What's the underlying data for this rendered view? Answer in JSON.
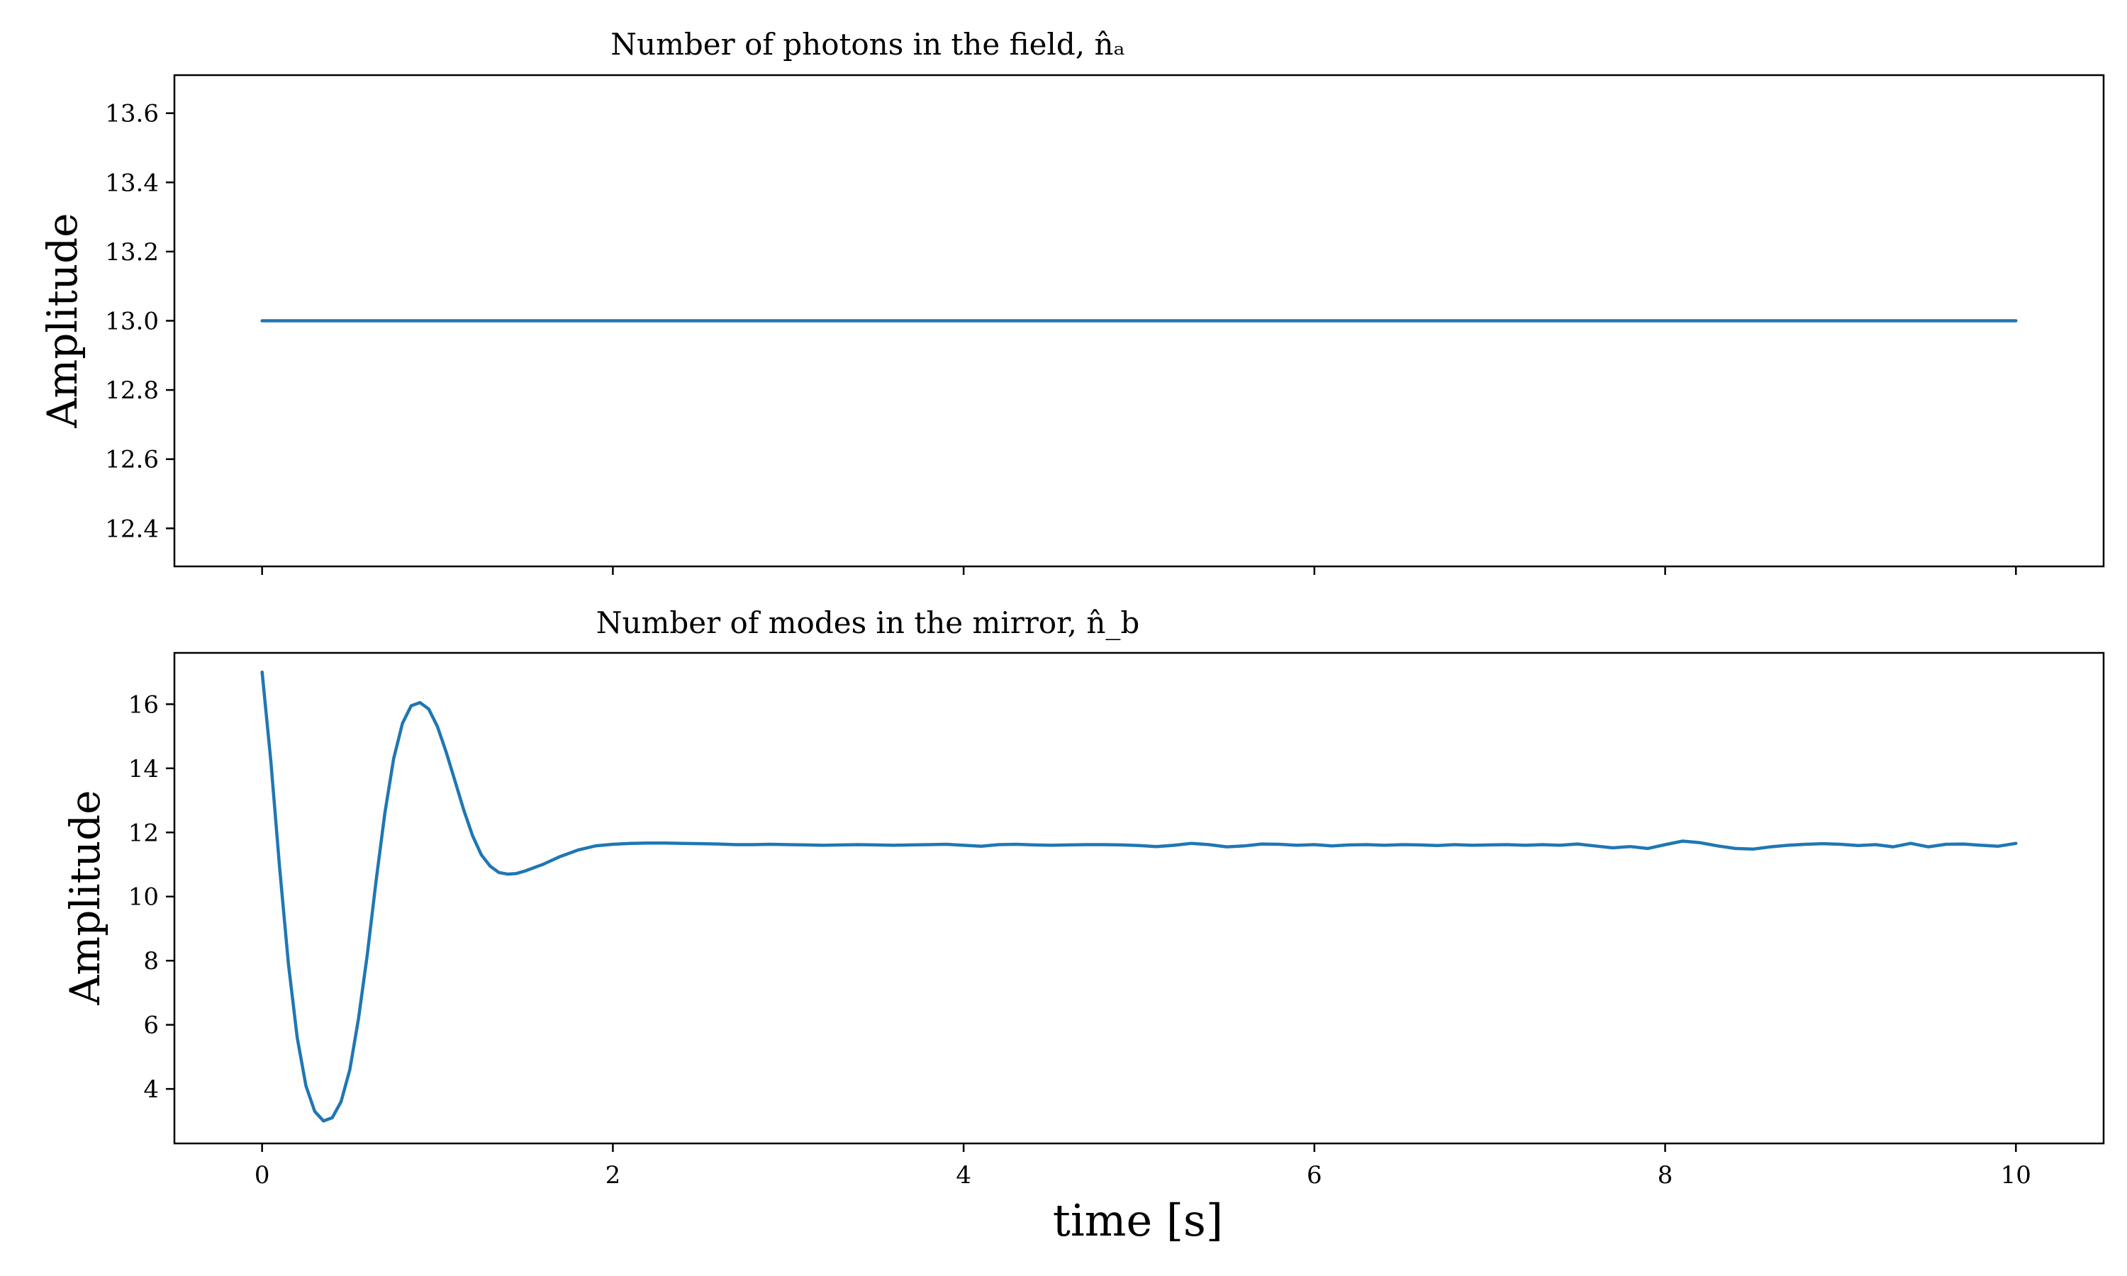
{
  "chart_data": [
    {
      "type": "line",
      "title": "Number of photons in the field, n̂ₐ",
      "xlabel": "",
      "ylabel": "Amplitude",
      "xlim": [
        -0.5,
        10.5
      ],
      "ylim": [
        12.29,
        13.71
      ],
      "xticks": [
        0,
        2,
        4,
        6,
        8,
        10
      ],
      "show_xtick_labels": false,
      "yticks": [
        12.4,
        12.6,
        12.8,
        13.0,
        13.2,
        13.4,
        13.6
      ],
      "ytick_labels": [
        "12.4",
        "12.6",
        "12.8",
        "13.0",
        "13.2",
        "13.4",
        "13.6"
      ],
      "grid": false,
      "color": "#1f77b4",
      "series": [
        {
          "x": [
            0,
            10
          ],
          "y": [
            13.0,
            13.0
          ]
        }
      ]
    },
    {
      "type": "line",
      "title": "Number of modes in the mirror, n̂_b",
      "xlabel": "time [s]",
      "ylabel": "Amplitude",
      "xlim": [
        -0.5,
        10.5
      ],
      "ylim": [
        2.3,
        17.6
      ],
      "xticks": [
        0,
        2,
        4,
        6,
        8,
        10
      ],
      "xtick_labels": [
        "0",
        "2",
        "4",
        "6",
        "8",
        "10"
      ],
      "show_xtick_labels": true,
      "yticks": [
        4,
        6,
        8,
        10,
        12,
        14,
        16
      ],
      "ytick_labels": [
        "4",
        "6",
        "8",
        "10",
        "12",
        "14",
        "16"
      ],
      "grid": false,
      "color": "#1f77b4",
      "series": [
        {
          "x": [
            0,
            0.05,
            0.1,
            0.15,
            0.2,
            0.25,
            0.3,
            0.35,
            0.4,
            0.45,
            0.5,
            0.55,
            0.6,
            0.65,
            0.7,
            0.75,
            0.8,
            0.85,
            0.9,
            0.95,
            1.0,
            1.05,
            1.1,
            1.15,
            1.2,
            1.25,
            1.3,
            1.35,
            1.4,
            1.45,
            1.5,
            1.55,
            1.6,
            1.7,
            1.8,
            1.9,
            2.0,
            2.1,
            2.2,
            2.3,
            2.4,
            2.5,
            2.6,
            2.7,
            2.8,
            2.9,
            3.0,
            3.1,
            3.2,
            3.3,
            3.4,
            3.5,
            3.6,
            3.7,
            3.8,
            3.9,
            4.0,
            4.1,
            4.2,
            4.3,
            4.4,
            4.5,
            4.6,
            4.7,
            4.8,
            4.9,
            5.0,
            5.1,
            5.2,
            5.3,
            5.4,
            5.5,
            5.6,
            5.7,
            5.8,
            5.9,
            6.0,
            6.1,
            6.2,
            6.3,
            6.4,
            6.5,
            6.6,
            6.7,
            6.8,
            6.9,
            7.0,
            7.1,
            7.2,
            7.3,
            7.4,
            7.5,
            7.6,
            7.7,
            7.8,
            7.9,
            8.0,
            8.1,
            8.2,
            8.3,
            8.4,
            8.5,
            8.6,
            8.7,
            8.8,
            8.9,
            9.0,
            9.1,
            9.2,
            9.3,
            9.4,
            9.5,
            9.6,
            9.7,
            9.8,
            9.9,
            10.0
          ],
          "y": [
            17.0,
            14.2,
            10.9,
            7.9,
            5.6,
            4.1,
            3.3,
            3.0,
            3.1,
            3.6,
            4.6,
            6.2,
            8.2,
            10.5,
            12.6,
            14.3,
            15.4,
            15.95,
            16.05,
            15.85,
            15.3,
            14.5,
            13.6,
            12.7,
            11.9,
            11.3,
            10.95,
            10.75,
            10.7,
            10.72,
            10.8,
            10.9,
            11.0,
            11.25,
            11.45,
            11.58,
            11.63,
            11.66,
            11.67,
            11.67,
            11.66,
            11.65,
            11.64,
            11.62,
            11.62,
            11.63,
            11.62,
            11.61,
            11.6,
            11.61,
            11.62,
            11.61,
            11.6,
            11.61,
            11.62,
            11.63,
            11.6,
            11.57,
            11.62,
            11.63,
            11.61,
            11.6,
            11.61,
            11.62,
            11.62,
            11.61,
            11.59,
            11.56,
            11.6,
            11.66,
            11.62,
            11.55,
            11.58,
            11.64,
            11.63,
            11.6,
            11.62,
            11.58,
            11.61,
            11.62,
            11.6,
            11.62,
            11.61,
            11.59,
            11.62,
            11.6,
            11.61,
            11.62,
            11.6,
            11.62,
            11.6,
            11.64,
            11.58,
            11.52,
            11.56,
            11.5,
            11.62,
            11.73,
            11.68,
            11.58,
            11.5,
            11.48,
            11.55,
            11.6,
            11.63,
            11.65,
            11.63,
            11.59,
            11.62,
            11.55,
            11.66,
            11.55,
            11.63,
            11.64,
            11.6,
            11.57,
            11.66
          ]
        }
      ]
    }
  ]
}
